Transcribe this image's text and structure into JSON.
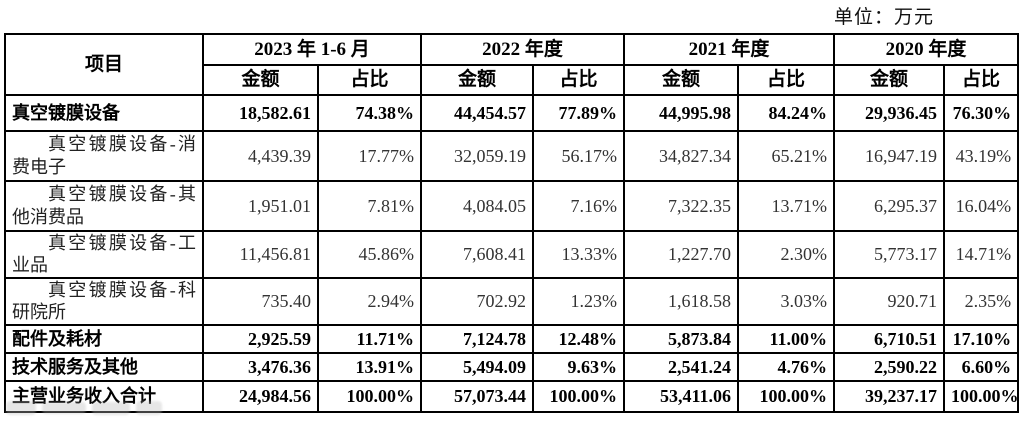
{
  "unit_label": "单位：万元",
  "table": {
    "item_header": "项目",
    "amount_header": "金额",
    "ratio_header": "占比",
    "col_groups": [
      {
        "label": "2023 年 1-6 月"
      },
      {
        "label": "2022 年度"
      },
      {
        "label": "2021 年度"
      },
      {
        "label": "2020 年度"
      }
    ],
    "rows": [
      {
        "label": "真空镀膜设备",
        "bold": true,
        "indent": false,
        "values": [
          "18,582.61",
          "74.38%",
          "44,454.57",
          "77.89%",
          "44,995.98",
          "84.24%",
          "29,936.45",
          "76.30%"
        ]
      },
      {
        "label": "真空镀膜设备-消费电子",
        "bold": false,
        "indent": true,
        "values": [
          "4,439.39",
          "17.77%",
          "32,059.19",
          "56.17%",
          "34,827.34",
          "65.21%",
          "16,947.19",
          "43.19%"
        ]
      },
      {
        "label": "真空镀膜设备-其他消费品",
        "bold": false,
        "indent": true,
        "values": [
          "1,951.01",
          "7.81%",
          "4,084.05",
          "7.16%",
          "7,322.35",
          "13.71%",
          "6,295.37",
          "16.04%"
        ]
      },
      {
        "label": "真空镀膜设备-工业品",
        "bold": false,
        "indent": true,
        "values": [
          "11,456.81",
          "45.86%",
          "7,608.41",
          "13.33%",
          "1,227.70",
          "2.30%",
          "5,773.17",
          "14.71%"
        ]
      },
      {
        "label": "真空镀膜设备-科研院所",
        "bold": false,
        "indent": true,
        "values": [
          "735.40",
          "2.94%",
          "702.92",
          "1.23%",
          "1,618.58",
          "3.03%",
          "920.71",
          "2.35%"
        ]
      },
      {
        "label": "配件及耗材",
        "bold": true,
        "indent": false,
        "values": [
          "2,925.59",
          "11.71%",
          "7,124.78",
          "12.48%",
          "5,873.84",
          "11.00%",
          "6,710.51",
          "17.10%"
        ]
      },
      {
        "label": "技术服务及其他",
        "bold": true,
        "indent": false,
        "values": [
          "3,476.36",
          "13.91%",
          "5,494.09",
          "9.63%",
          "2,541.24",
          "4.76%",
          "2,590.22",
          "6.60%"
        ]
      },
      {
        "label": "主营业务收入合计",
        "bold": true,
        "indent": false,
        "values": [
          "24,984.56",
          "100.00%",
          "57,073.44",
          "100.00%",
          "53,411.06",
          "100.00%",
          "39,237.17",
          "100.00%"
        ]
      }
    ]
  }
}
